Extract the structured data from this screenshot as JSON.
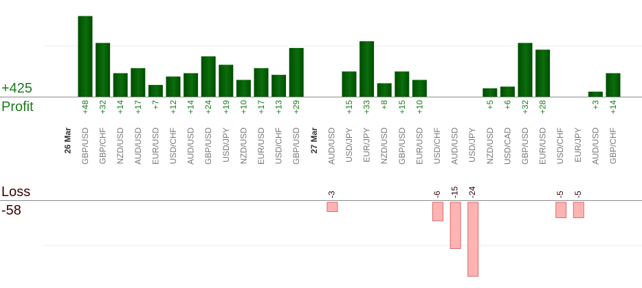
{
  "summary": {
    "profit_total": "+425",
    "profit_label": "Profit",
    "loss_label": "Loss",
    "loss_total": "-58"
  },
  "colors": {
    "profit_bar_dark": "#004d00",
    "profit_bar_light": "#1a8a1a",
    "loss_bar_fill": "#ffb3b3",
    "loss_bar_stroke": "#d86a6a",
    "profit_text": "#1b7a1b",
    "loss_text": "#2b0000",
    "category_text": "#777777",
    "date_text": "#333333",
    "axis_line": "#8a8a8a",
    "grid_line": "#ececec"
  },
  "chart_data": {
    "type": "bar",
    "profit_ylim": [
      0,
      30
    ],
    "loss_ylim": [
      -28,
      0
    ],
    "groups": [
      {
        "date": "26 Mar",
        "trades": [
          {
            "pair": "GBP/USD",
            "profit": 48
          },
          {
            "pair": "GBP/CHF",
            "profit": 32
          },
          {
            "pair": "NZD/USD",
            "profit": 14
          },
          {
            "pair": "AUD/USD",
            "profit": 17
          },
          {
            "pair": "EUR/USD",
            "profit": 7
          },
          {
            "pair": "USD/CHF",
            "profit": 12
          },
          {
            "pair": "AUD/USD",
            "profit": 14
          },
          {
            "pair": "GBP/USD",
            "profit": 24
          },
          {
            "pair": "USD/JPY",
            "profit": 19
          },
          {
            "pair": "NZD/USD",
            "profit": 10
          },
          {
            "pair": "EUR/USD",
            "profit": 17
          },
          {
            "pair": "USD/CHF",
            "profit": 13
          },
          {
            "pair": "GBP/USD",
            "profit": 29
          }
        ]
      },
      {
        "date": "27 Mar",
        "trades": [
          {
            "pair": "AUD/USD",
            "loss": -3
          },
          {
            "pair": "USD/JPY",
            "profit": 15
          },
          {
            "pair": "EUR/JPY",
            "profit": 33
          },
          {
            "pair": "NZD/USD",
            "profit": 8
          },
          {
            "pair": "GBP/USD",
            "profit": 15
          },
          {
            "pair": "EUR/USD",
            "profit": 10
          },
          {
            "pair": "USD/CHF",
            "loss": -6
          },
          {
            "pair": "AUD/USD",
            "loss": -15
          },
          {
            "pair": "USD/JPY",
            "loss": -24
          },
          {
            "pair": "NZD/USD",
            "profit": 5
          },
          {
            "pair": "USD/CAD",
            "profit": 6
          },
          {
            "pair": "GBP/USD",
            "profit": 32
          },
          {
            "pair": "EUR/USD",
            "profit": 28
          },
          {
            "pair": "USD/CHF",
            "loss": -5
          },
          {
            "pair": "EUR/JPY",
            "loss": -5
          },
          {
            "pair": "AUD/USD",
            "profit": 3
          },
          {
            "pair": "GBP/CHF",
            "profit": 14
          }
        ]
      }
    ]
  }
}
